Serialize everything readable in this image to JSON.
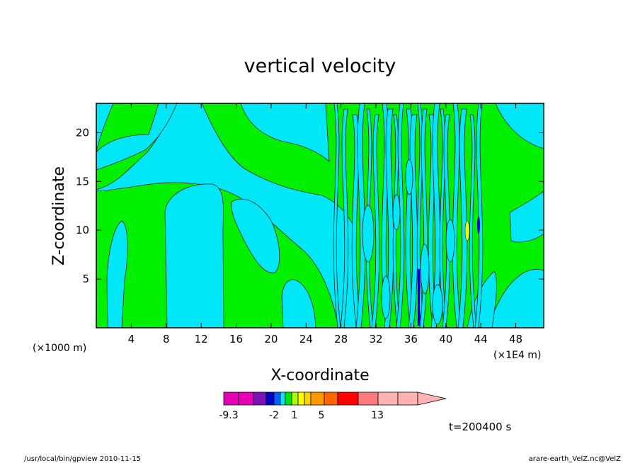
{
  "chart_data": {
    "type": "heatmap",
    "title": "vertical velocity",
    "xlabel": "X-coordinate",
    "ylabel": "Z-coordinate",
    "xunit_left": "(×1000 m)",
    "xunit_right": "(×1E4 m)",
    "xlim": [
      0,
      51.2
    ],
    "ylim": [
      0,
      23
    ],
    "xticks": [
      4,
      8,
      12,
      16,
      20,
      24,
      28,
      32,
      36,
      40,
      44,
      48
    ],
    "yticks": [
      5,
      10,
      15,
      20
    ],
    "grid": false,
    "colorbar": {
      "labels": [
        {
          "value": "-9.3",
          "level_index": 0
        },
        {
          "value": "-2",
          "level_index": 3
        },
        {
          "value": "1",
          "level_index": 6
        },
        {
          "value": "5",
          "level_index": 10
        },
        {
          "value": "13",
          "level_index": 14
        }
      ],
      "colors": [
        "#e600b3",
        "#e600b3",
        "#7a12b8",
        "#0000cc",
        "#0061ff",
        "#00e6ff",
        "#00e600",
        "#aaff00",
        "#ffff00",
        "#ffd300",
        "#ff9900",
        "#ff6600",
        "#ff0000",
        "#ff7a7a",
        "#ffb3b3",
        "#ffb3b3"
      ],
      "extend": "max"
    },
    "dominant_colors": {
      "positive_weak": "#00f000",
      "negative_weak": "#00e8f8"
    },
    "time_label": "t=200400 s"
  },
  "footer": {
    "left": "/usr/local/bin/gpview   2010-11-15",
    "right": "arare-earth_VelZ.nc@VelZ"
  }
}
